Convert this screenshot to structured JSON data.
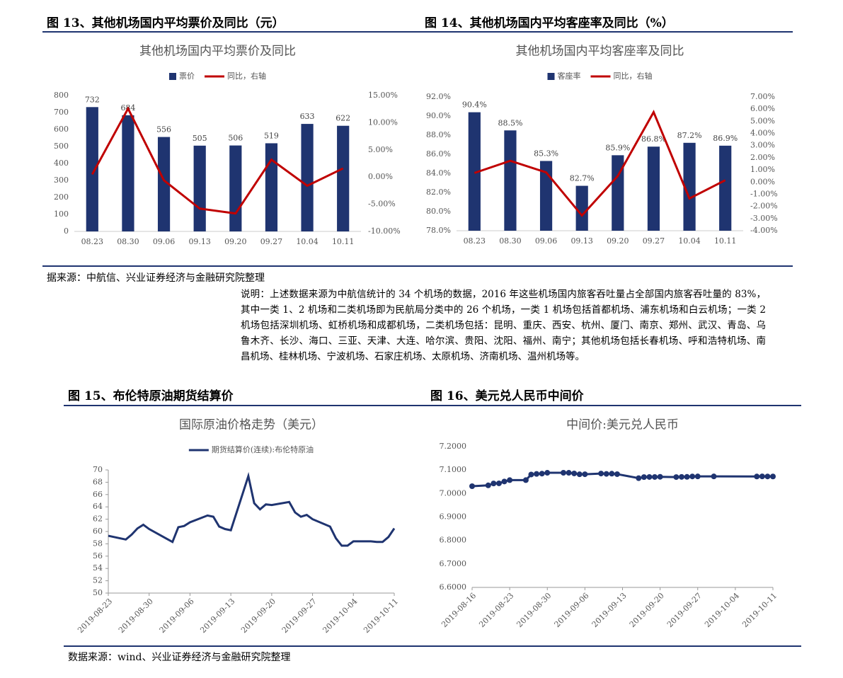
{
  "captions": [
    "图 13、其他机场国内平均票价及同比（元）",
    "图 14、其他机场国内平均客座率及同比（%）",
    "图 15、布伦特原油期货结算价",
    "图 16、美元兑人民币中间价"
  ],
  "source_top": "据来源：中航信、兴业证券经济与金融研究院整理",
  "note": "说明：上述数据来源为中航信统计的 34 个机场的数据，2016 年这些机场国内旅客吞吐量占全部国内旅客吞吐量的 83%，其中一类 1、2 机场和二类机场即为民航局分类中的 26 个机场，一类 1 机场包括首都机场、浦东机场和白云机场；一类 2 机场包括深圳机场、虹桥机场和成都机场，二类机场包括：昆明、重庆、西安、杭州、厦门、南京、郑州、武汉、青岛、乌鲁木齐、长沙、海口、三亚、天津、大连、哈尔滨、贵阳、沈阳、福州、南宁；其他机场包括长春机场、呼和浩特机场、南昌机场、桂林机场、宁波机场、石家庄机场、太原机场、济南机场、温州机场等。",
  "source_bottom": "数据来源：wind、兴业证券经济与金融研究院整理",
  "chart_data": [
    {
      "type": "bar",
      "title": "其他机场国内平均票价及同比",
      "categories": [
        "08.23",
        "08.30",
        "09.06",
        "09.13",
        "09.20",
        "09.27",
        "10.04",
        "10.11"
      ],
      "series": [
        {
          "name": "票价",
          "color": "#1f3470",
          "values": [
            732,
            684,
            556,
            505,
            506,
            519,
            633,
            622
          ]
        },
        {
          "name": "同比，右轴",
          "color": "#c00000",
          "axis": "y2",
          "values": [
            0.5,
            12.6,
            -0.6,
            -5.8,
            -6.7,
            3.2,
            -1.6,
            1.6
          ]
        }
      ],
      "ylim": [
        0,
        800
      ],
      "yticks": [
        0,
        100,
        200,
        300,
        400,
        500,
        600,
        700,
        800
      ],
      "y2lim": [
        -10,
        15
      ],
      "y2ticks": [
        {
          "value": -10,
          "label": "-10.00%"
        },
        {
          "value": -5,
          "label": "-5.00%"
        },
        {
          "value": 0,
          "label": "0.00%"
        },
        {
          "value": 5,
          "label": "5.00%"
        },
        {
          "value": 10,
          "label": "10.00%"
        },
        {
          "value": 15,
          "label": "15.00%"
        }
      ],
      "legend": "top"
    },
    {
      "type": "bar",
      "title": "其他机场国内平均客座率及同比",
      "categories": [
        "08.23",
        "08.30",
        "09.06",
        "09.13",
        "09.20",
        "09.27",
        "10.04",
        "10.11"
      ],
      "series": [
        {
          "name": "客座率",
          "color": "#1f3470",
          "values": [
            90.4,
            88.5,
            85.3,
            82.7,
            85.9,
            86.8,
            87.2,
            86.9
          ],
          "value_labels": [
            "90.4%",
            "88.5%",
            "85.3%",
            "82.7%",
            "85.9%",
            "86.8%",
            "87.2%",
            "86.9%"
          ]
        },
        {
          "name": "同比，右轴",
          "color": "#c00000",
          "axis": "y2",
          "values": [
            0.75,
            1.75,
            0.8,
            -2.75,
            0.5,
            5.75,
            -1.35,
            0.15
          ]
        }
      ],
      "ylim": [
        78,
        92
      ],
      "yticks": [
        {
          "value": 78,
          "label": "78.0%"
        },
        {
          "value": 80,
          "label": "80.0%"
        },
        {
          "value": 82,
          "label": "82.0%"
        },
        {
          "value": 84,
          "label": "84.0%"
        },
        {
          "value": 86,
          "label": "86.0%"
        },
        {
          "value": 88,
          "label": "88.0%"
        },
        {
          "value": 90,
          "label": "90.0%"
        },
        {
          "value": 92,
          "label": "92.0%"
        }
      ],
      "y2lim": [
        -4,
        7
      ],
      "y2ticks": [
        {
          "value": -4,
          "label": "-4.00%"
        },
        {
          "value": -3,
          "label": "-3.00%"
        },
        {
          "value": -2,
          "label": "-2.00%"
        },
        {
          "value": -1,
          "label": "-1.00%"
        },
        {
          "value": 0,
          "label": "0.00%"
        },
        {
          "value": 1,
          "label": "1.00%"
        },
        {
          "value": 2,
          "label": "2.00%"
        },
        {
          "value": 3,
          "label": "3.00%"
        },
        {
          "value": 4,
          "label": "4.00%"
        },
        {
          "value": 5,
          "label": "5.00%"
        },
        {
          "value": 6,
          "label": "6.00%"
        },
        {
          "value": 7,
          "label": "7.00%"
        }
      ],
      "legend": "top"
    },
    {
      "type": "line",
      "title": "国际原油价格走势（美元）",
      "x": [
        "2019-08-23",
        "2019-08-26",
        "2019-08-27",
        "2019-08-28",
        "2019-08-29",
        "2019-08-30",
        "2019-09-03",
        "2019-09-04",
        "2019-09-05",
        "2019-09-06",
        "2019-09-09",
        "2019-09-10",
        "2019-09-11",
        "2019-09-12",
        "2019-09-13",
        "2019-09-16",
        "2019-09-17",
        "2019-09-18",
        "2019-09-19",
        "2019-09-20",
        "2019-09-23",
        "2019-09-24",
        "2019-09-25",
        "2019-09-26",
        "2019-09-27",
        "2019-09-30",
        "2019-10-01",
        "2019-10-02",
        "2019-10-03",
        "2019-10-04",
        "2019-10-07",
        "2019-10-08",
        "2019-10-09",
        "2019-10-10",
        "2019-10-11"
      ],
      "series": [
        {
          "name": "期货结算价(连续):布伦特原油",
          "color": "#1f3470",
          "values": [
            59.3,
            58.7,
            59.5,
            60.5,
            61.1,
            60.4,
            58.3,
            60.7,
            60.9,
            61.5,
            62.6,
            62.4,
            60.8,
            60.4,
            60.2,
            69.0,
            64.6,
            63.6,
            64.4,
            64.3,
            64.8,
            63.1,
            62.4,
            62.7,
            62.0,
            60.8,
            58.9,
            57.7,
            57.7,
            58.4,
            58.4,
            58.3,
            58.3,
            59.1,
            60.5
          ]
        }
      ],
      "xlim": [
        "2019-08-23",
        "2019-10-11"
      ],
      "xticks": [
        "2019-08-23",
        "2019-08-30",
        "2019-09-06",
        "2019-09-13",
        "2019-09-20",
        "2019-09-27",
        "2019-10-04",
        "2019-10-11"
      ],
      "ylim": [
        50,
        70
      ],
      "yticks": [
        50,
        52,
        54,
        56,
        58,
        60,
        62,
        64,
        66,
        68,
        70
      ],
      "legend": "top"
    },
    {
      "type": "line",
      "title": "中间价:美元兑人民币",
      "x": [
        "2019-08-16",
        "2019-08-19",
        "2019-08-20",
        "2019-08-21",
        "2019-08-22",
        "2019-08-23",
        "2019-08-26",
        "2019-08-27",
        "2019-08-28",
        "2019-08-29",
        "2019-08-30",
        "2019-09-02",
        "2019-09-03",
        "2019-09-04",
        "2019-09-05",
        "2019-09-06",
        "2019-09-09",
        "2019-09-10",
        "2019-09-11",
        "2019-09-12",
        "2019-09-16",
        "2019-09-17",
        "2019-09-18",
        "2019-09-19",
        "2019-09-20",
        "2019-09-23",
        "2019-09-24",
        "2019-09-25",
        "2019-09-26",
        "2019-09-27",
        "2019-09-30",
        "2019-10-08",
        "2019-10-09",
        "2019-10-10",
        "2019-10-11"
      ],
      "series": [
        {
          "color": "#1f3470",
          "markers": true,
          "values": [
            7.0312,
            7.0348,
            7.0428,
            7.0433,
            7.0512,
            7.057,
            7.057,
            7.081,
            7.0835,
            7.0848,
            7.0883,
            7.0884,
            7.0883,
            7.0856,
            7.0819,
            7.0821,
            7.0851,
            7.0836,
            7.0846,
            7.0826,
            7.0655,
            7.07,
            7.0704,
            7.0704,
            7.0712,
            7.0701,
            7.0709,
            7.071,
            7.0727,
            7.0729,
            7.0729,
            7.0725,
            7.073,
            7.0728,
            7.0726
          ]
        }
      ],
      "xlim": [
        "2019-08-16",
        "2019-10-11"
      ],
      "xticks": [
        "2019-08-16",
        "2019-08-23",
        "2019-08-30",
        "2019-09-06",
        "2019-09-13",
        "2019-09-20",
        "2019-09-27",
        "2019-10-04",
        "2019-10-11"
      ],
      "ylim": [
        6.6,
        7.2
      ],
      "yticks": [
        {
          "value": 6.6,
          "label": "6.6000"
        },
        {
          "value": 6.7,
          "label": "6.7000"
        },
        {
          "value": 6.8,
          "label": "6.8000"
        },
        {
          "value": 6.9,
          "label": "6.9000"
        },
        {
          "value": 7.0,
          "label": "7.0000"
        },
        {
          "value": 7.1,
          "label": "7.1000"
        },
        {
          "value": 7.2,
          "label": "7.2000"
        }
      ]
    }
  ]
}
